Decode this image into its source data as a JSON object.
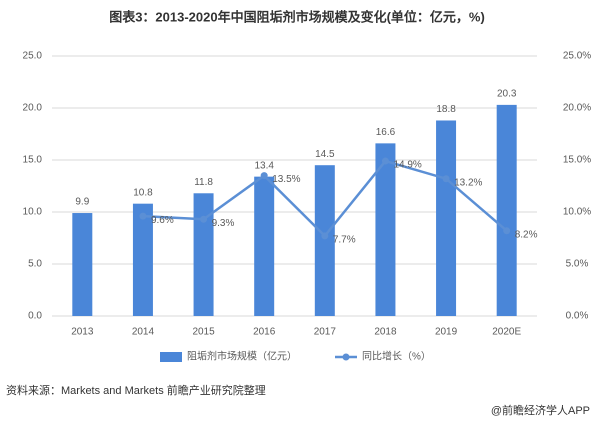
{
  "chart_data": {
    "type": "bar",
    "title": "图表3：2013-2020年中国阻垢剂市场规模及变化(单位：亿元，%)",
    "categories": [
      "2013",
      "2014",
      "2015",
      "2016",
      "2017",
      "2018",
      "2019",
      "2020E"
    ],
    "series": [
      {
        "name": "阻垢剂市场规模（亿元）",
        "type": "bar",
        "color": "#4a86d8",
        "values": [
          9.9,
          10.8,
          11.8,
          13.4,
          14.5,
          16.6,
          18.8,
          20.3
        ]
      },
      {
        "name": "同比增长（%）",
        "type": "line",
        "axis": "y2",
        "color": "#5b8fd5",
        "values": [
          null,
          9.6,
          9.3,
          13.5,
          7.7,
          14.9,
          13.2,
          8.2
        ],
        "value_labels": [
          null,
          "9.6%",
          "9.3%",
          "13.5%",
          "7.7%",
          "14.9%",
          "13.2%",
          "8.2%"
        ]
      }
    ],
    "ylim": [
      0,
      25
    ],
    "yticks": [
      {
        "value": 0,
        "label": "0.0"
      },
      {
        "value": 5,
        "label": "5.0"
      },
      {
        "value": 10,
        "label": "10.0"
      },
      {
        "value": 15,
        "label": "15.0"
      },
      {
        "value": 20,
        "label": "20.0"
      },
      {
        "value": 25,
        "label": "25.0"
      }
    ],
    "y2lim": [
      0,
      25
    ],
    "y2ticks": [
      {
        "value": 0,
        "label": "0.0%"
      },
      {
        "value": 5,
        "label": "5.0%"
      },
      {
        "value": 10,
        "label": "10.0%"
      },
      {
        "value": 15,
        "label": "15.0%"
      },
      {
        "value": 20,
        "label": "20.0%"
      },
      {
        "value": 25,
        "label": "25.0%"
      }
    ],
    "grid": true,
    "legend": "bottom"
  },
  "source": "资料来源：Markets and Markets 前瞻产业研究院整理",
  "footer": "@前瞻经济学人APP"
}
